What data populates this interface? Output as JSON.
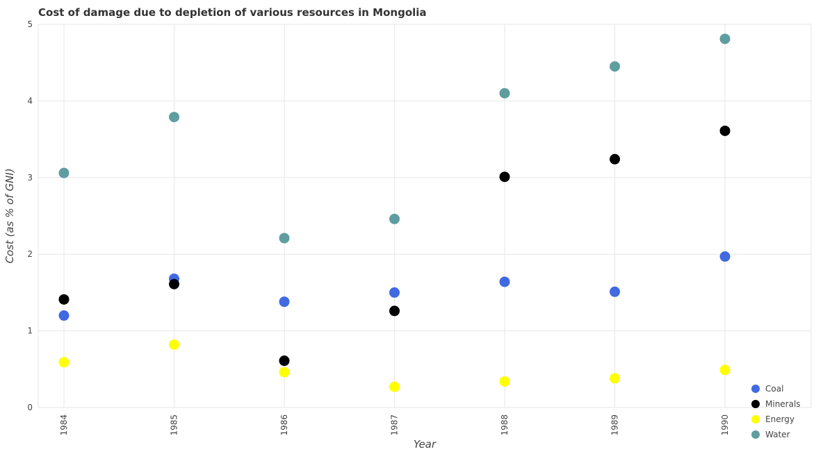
{
  "chart_data": {
    "type": "scatter",
    "title": "Cost of damage due to depletion of various resources in Mongolia",
    "xlabel": "Year",
    "ylabel": "Cost (as % of GNI)",
    "x": [
      "1984",
      "1985",
      "1986",
      "1987",
      "1988",
      "1989",
      "1990"
    ],
    "ylim": [
      0,
      5
    ],
    "yticks": [
      "0",
      "1",
      "2",
      "3",
      "4",
      "5"
    ],
    "grid": true,
    "legend_position": "bottom-right",
    "series": [
      {
        "name": "Coal",
        "color": "#4169e1",
        "values": [
          1.2,
          1.68,
          1.38,
          1.5,
          1.64,
          1.51,
          1.97
        ]
      },
      {
        "name": "Minerals",
        "color": "#000000",
        "values": [
          1.41,
          1.61,
          0.61,
          1.26,
          3.01,
          3.24,
          3.61
        ]
      },
      {
        "name": "Energy",
        "color": "#ffff00",
        "values": [
          0.59,
          0.82,
          0.46,
          0.27,
          0.34,
          0.38,
          0.49
        ]
      },
      {
        "name": "Water",
        "color": "#5f9ea0",
        "values": [
          3.06,
          3.79,
          2.21,
          2.46,
          4.1,
          4.45,
          4.81
        ]
      }
    ]
  }
}
